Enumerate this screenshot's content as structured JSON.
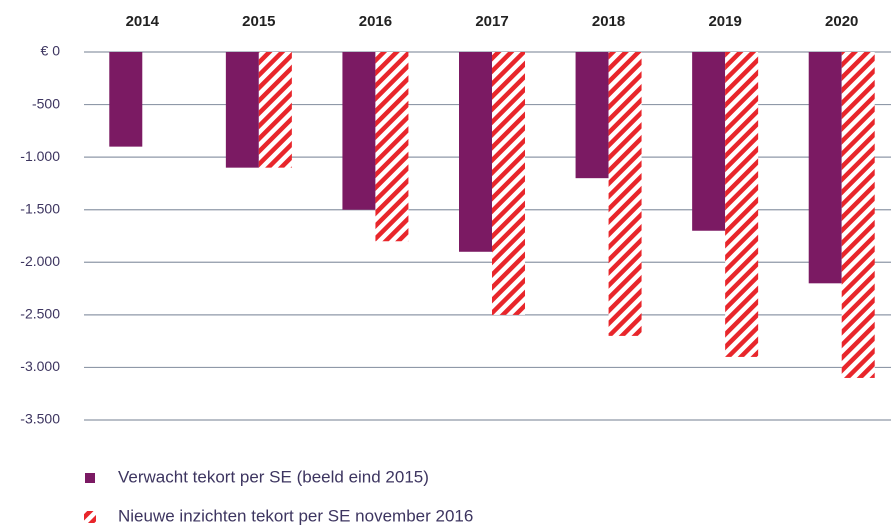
{
  "chart_data": {
    "type": "bar",
    "categories": [
      "2014",
      "2015",
      "2016",
      "2017",
      "2018",
      "2019",
      "2020"
    ],
    "series": [
      {
        "name": "Verwacht tekort per SE (beeld eind 2015)",
        "color": "#7b1a63",
        "values": [
          -900,
          -1100,
          -1500,
          -1900,
          -1200,
          -1700,
          -2200
        ]
      },
      {
        "name": "Nieuwe inzichten tekort per SE november 2016",
        "color": "#e8262b",
        "pattern": "hatch",
        "values": [
          null,
          -1100,
          -1800,
          -2500,
          -2700,
          -2900,
          -3100
        ]
      }
    ],
    "ylim": [
      -3500,
      0
    ],
    "yticks": [
      {
        "value": 0,
        "label": "€ 0"
      },
      -500,
      {
        "value": -1000,
        "label": "-1.000"
      },
      {
        "value": -1500,
        "label": "-1.500"
      },
      {
        "value": -2000,
        "label": "-2.000"
      },
      {
        "value": -2500,
        "label": "-2.500"
      },
      {
        "value": -3000,
        "label": "-3.000"
      },
      {
        "value": -3500,
        "label": "-3.500"
      }
    ],
    "grid": true
  }
}
